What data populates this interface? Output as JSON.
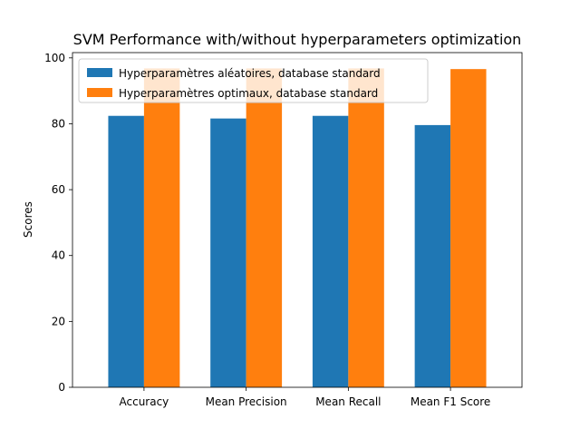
{
  "chart_data": {
    "type": "bar",
    "title": "SVM Performance with/without hyperparameters optimization",
    "xlabel": "",
    "ylabel": "Scores",
    "categories": [
      "Accuracy",
      "Mean Precision",
      "Mean Recall",
      "Mean F1 Score"
    ],
    "series": [
      {
        "name": "Hyperparamètres aléatoires, database standard",
        "values": [
          82.4,
          81.6,
          82.4,
          79.6
        ],
        "color": "#1f77b4"
      },
      {
        "name": "Hyperparamètres optimaux, database standard",
        "values": [
          96.8,
          96.8,
          96.8,
          96.6
        ],
        "color": "#ff7f0e"
      }
    ],
    "ylim": [
      0,
      101.6
    ],
    "yticks": [
      0,
      20,
      40,
      60,
      80,
      100
    ],
    "grid": false,
    "legend_position": "top-left"
  }
}
